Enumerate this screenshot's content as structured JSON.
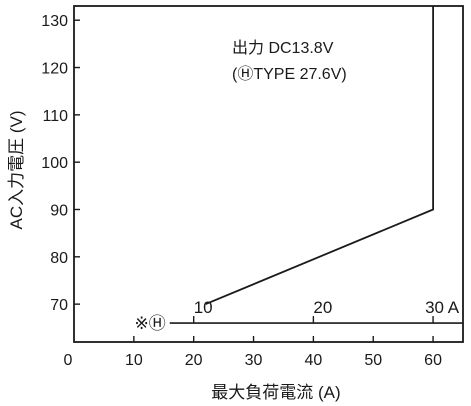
{
  "chart_data": {
    "type": "line",
    "xlabel": "最大負荷電流 (A)",
    "ylabel": "AC入力電圧 (V)",
    "xlim": [
      0,
      65
    ],
    "ylim": [
      62,
      133
    ],
    "x_ticks": [
      0,
      10,
      20,
      30,
      40,
      50,
      60
    ],
    "y_ticks": [
      70,
      80,
      90,
      100,
      110,
      120,
      130
    ],
    "series": [
      {
        "x": [
          22,
          60,
          60
        ],
        "y": [
          70,
          90,
          133
        ]
      }
    ],
    "annotation": {
      "line1": "出力  DC13.8V",
      "line2": "(ⒽTYPE 27.6V)"
    },
    "h_type_scale": {
      "marker": "※Ⓗ",
      "y": 66,
      "x_start": 16,
      "x_end": 65,
      "ticks": [
        {
          "label": "10",
          "x": 20
        },
        {
          "label": "20",
          "x": 40
        },
        {
          "label": "30 A",
          "x": 60
        }
      ]
    },
    "grid": false
  }
}
